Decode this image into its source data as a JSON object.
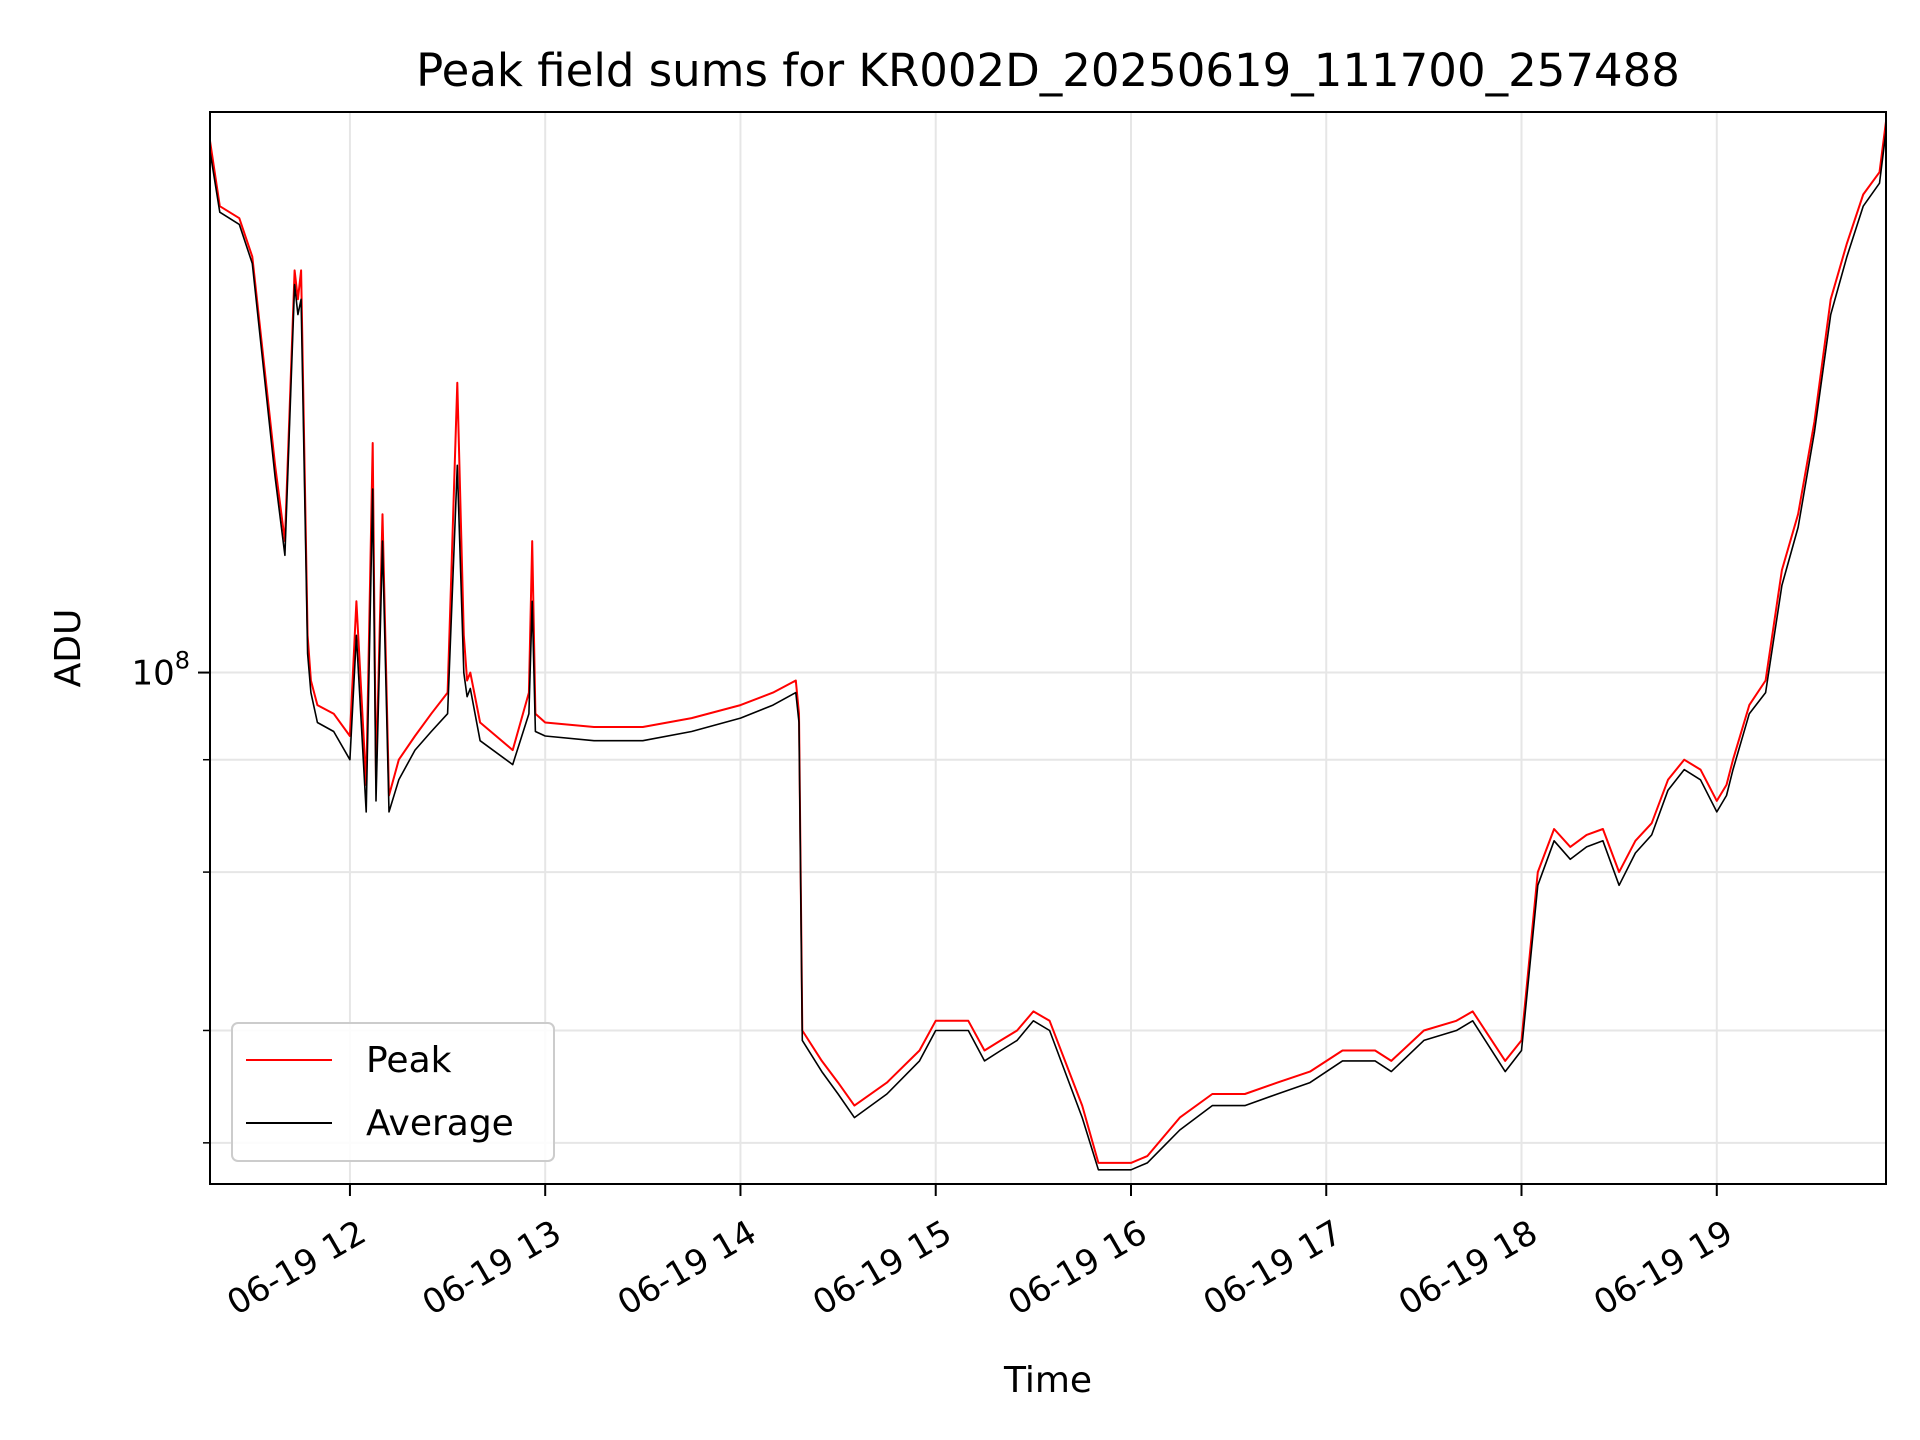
{
  "chart_data": {
    "type": "line",
    "title": "Peak field sums for KR002D_20250619_111700_257488",
    "xlabel": "Time",
    "ylabel": "ADU",
    "x_axis": {
      "type": "datetime",
      "range": [
        "2025-06-19 11:17",
        "2025-06-19 19:52"
      ],
      "tick_labels": [
        "06-19 12",
        "06-19 13",
        "06-19 14",
        "06-19 15",
        "06-19 16",
        "06-19 17",
        "06-19 18",
        "06-19 19"
      ],
      "tick_values": [
        "2025-06-19 12:00",
        "2025-06-19 13:00",
        "2025-06-19 14:00",
        "2025-06-19 15:00",
        "2025-06-19 16:00",
        "2025-06-19 17:00",
        "2025-06-19 18:00",
        "2025-06-19 19:00"
      ]
    },
    "y_axis": {
      "scale": "log",
      "range": [
        27000000,
        420000000
      ],
      "major_tick_values": [
        100000000
      ],
      "major_tick_labels": [
        {
          "base": "10",
          "exp": "8"
        }
      ],
      "minor_tick_values": [
        30000000,
        40000000,
        60000000,
        80000000
      ]
    },
    "grid": true,
    "legend_position": "lower-left",
    "colors": {
      "Peak": "#ff0000",
      "Average": "#000000"
    },
    "series": [
      {
        "name": "Peak",
        "x": [
          "2025-06-19 11:17",
          "2025-06-19 11:20",
          "2025-06-19 11:26",
          "2025-06-19 11:30",
          "2025-06-19 11:37",
          "2025-06-19 11:40",
          "2025-06-19 11:43",
          "2025-06-19 11:44",
          "2025-06-19 11:45",
          "2025-06-19 11:47",
          "2025-06-19 11:48",
          "2025-06-19 11:50",
          "2025-06-19 11:55",
          "2025-06-19 12:00",
          "2025-06-19 12:02",
          "2025-06-19 12:05",
          "2025-06-19 12:07",
          "2025-06-19 12:08",
          "2025-06-19 12:10",
          "2025-06-19 12:12",
          "2025-06-19 12:15",
          "2025-06-19 12:20",
          "2025-06-19 12:25",
          "2025-06-19 12:30",
          "2025-06-19 12:33",
          "2025-06-19 12:35",
          "2025-06-19 12:36",
          "2025-06-19 12:37",
          "2025-06-19 12:40",
          "2025-06-19 12:50",
          "2025-06-19 12:55",
          "2025-06-19 12:56",
          "2025-06-19 12:57",
          "2025-06-19 13:00",
          "2025-06-19 13:15",
          "2025-06-19 13:30",
          "2025-06-19 13:45",
          "2025-06-19 14:00",
          "2025-06-19 14:10",
          "2025-06-19 14:17",
          "2025-06-19 14:18",
          "2025-06-19 14:19",
          "2025-06-19 14:25",
          "2025-06-19 14:30",
          "2025-06-19 14:35",
          "2025-06-19 14:45",
          "2025-06-19 14:55",
          "2025-06-19 15:00",
          "2025-06-19 15:10",
          "2025-06-19 15:15",
          "2025-06-19 15:20",
          "2025-06-19 15:25",
          "2025-06-19 15:30",
          "2025-06-19 15:35",
          "2025-06-19 15:45",
          "2025-06-19 15:50",
          "2025-06-19 16:00",
          "2025-06-19 16:05",
          "2025-06-19 16:15",
          "2025-06-19 16:25",
          "2025-06-19 16:35",
          "2025-06-19 16:45",
          "2025-06-19 16:55",
          "2025-06-19 17:05",
          "2025-06-19 17:15",
          "2025-06-19 17:20",
          "2025-06-19 17:30",
          "2025-06-19 17:40",
          "2025-06-19 17:45",
          "2025-06-19 17:55",
          "2025-06-19 18:00",
          "2025-06-19 18:05",
          "2025-06-19 18:10",
          "2025-06-19 18:15",
          "2025-06-19 18:20",
          "2025-06-19 18:25",
          "2025-06-19 18:30",
          "2025-06-19 18:35",
          "2025-06-19 18:40",
          "2025-06-19 18:45",
          "2025-06-19 18:50",
          "2025-06-19 18:55",
          "2025-06-19 19:00",
          "2025-06-19 19:03",
          "2025-06-19 19:05",
          "2025-06-19 19:10",
          "2025-06-19 19:15",
          "2025-06-19 19:20",
          "2025-06-19 19:25",
          "2025-06-19 19:30",
          "2025-06-19 19:35",
          "2025-06-19 19:40",
          "2025-06-19 19:45",
          "2025-06-19 19:50",
          "2025-06-19 19:52"
        ],
        "y": [
          390000000,
          330000000,
          320000000,
          290000000,
          170000000,
          140000000,
          280000000,
          260000000,
          280000000,
          110000000,
          98000000,
          92000000,
          90000000,
          85000000,
          120000000,
          75000000,
          180000000,
          76000000,
          150000000,
          73000000,
          80000000,
          85000000,
          90000000,
          95000000,
          210000000,
          110000000,
          98000000,
          100000000,
          88000000,
          82000000,
          95000000,
          140000000,
          90000000,
          88000000,
          87000000,
          87000000,
          89000000,
          92000000,
          95000000,
          98000000,
          90000000,
          40000000,
          37000000,
          35000000,
          33000000,
          35000000,
          38000000,
          41000000,
          41000000,
          38000000,
          39000000,
          40000000,
          42000000,
          41000000,
          33000000,
          28500000,
          28500000,
          29000000,
          32000000,
          34000000,
          34000000,
          35000000,
          36000000,
          38000000,
          38000000,
          37000000,
          40000000,
          41000000,
          42000000,
          37000000,
          39000000,
          60000000,
          67000000,
          64000000,
          66000000,
          67000000,
          60000000,
          65000000,
          68000000,
          76000000,
          80000000,
          78000000,
          72000000,
          75000000,
          80000000,
          92000000,
          98000000,
          130000000,
          150000000,
          190000000,
          260000000,
          300000000,
          340000000,
          360000000,
          410000000
        ]
      },
      {
        "name": "Average",
        "x": [
          "2025-06-19 11:17",
          "2025-06-19 11:20",
          "2025-06-19 11:26",
          "2025-06-19 11:30",
          "2025-06-19 11:37",
          "2025-06-19 11:40",
          "2025-06-19 11:43",
          "2025-06-19 11:44",
          "2025-06-19 11:45",
          "2025-06-19 11:47",
          "2025-06-19 11:48",
          "2025-06-19 11:50",
          "2025-06-19 11:55",
          "2025-06-19 12:00",
          "2025-06-19 12:02",
          "2025-06-19 12:05",
          "2025-06-19 12:07",
          "2025-06-19 12:08",
          "2025-06-19 12:10",
          "2025-06-19 12:12",
          "2025-06-19 12:15",
          "2025-06-19 12:20",
          "2025-06-19 12:25",
          "2025-06-19 12:30",
          "2025-06-19 12:33",
          "2025-06-19 12:35",
          "2025-06-19 12:36",
          "2025-06-19 12:37",
          "2025-06-19 12:40",
          "2025-06-19 12:50",
          "2025-06-19 12:55",
          "2025-06-19 12:56",
          "2025-06-19 12:57",
          "2025-06-19 13:00",
          "2025-06-19 13:15",
          "2025-06-19 13:30",
          "2025-06-19 13:45",
          "2025-06-19 14:00",
          "2025-06-19 14:10",
          "2025-06-19 14:17",
          "2025-06-19 14:18",
          "2025-06-19 14:19",
          "2025-06-19 14:25",
          "2025-06-19 14:30",
          "2025-06-19 14:35",
          "2025-06-19 14:45",
          "2025-06-19 14:55",
          "2025-06-19 15:00",
          "2025-06-19 15:10",
          "2025-06-19 15:15",
          "2025-06-19 15:20",
          "2025-06-19 15:25",
          "2025-06-19 15:30",
          "2025-06-19 15:35",
          "2025-06-19 15:45",
          "2025-06-19 15:50",
          "2025-06-19 16:00",
          "2025-06-19 16:05",
          "2025-06-19 16:15",
          "2025-06-19 16:25",
          "2025-06-19 16:35",
          "2025-06-19 16:45",
          "2025-06-19 16:55",
          "2025-06-19 17:05",
          "2025-06-19 17:15",
          "2025-06-19 17:20",
          "2025-06-19 17:30",
          "2025-06-19 17:40",
          "2025-06-19 17:45",
          "2025-06-19 17:55",
          "2025-06-19 18:00",
          "2025-06-19 18:05",
          "2025-06-19 18:10",
          "2025-06-19 18:15",
          "2025-06-19 18:20",
          "2025-06-19 18:25",
          "2025-06-19 18:30",
          "2025-06-19 18:35",
          "2025-06-19 18:40",
          "2025-06-19 18:45",
          "2025-06-19 18:50",
          "2025-06-19 18:55",
          "2025-06-19 19:00",
          "2025-06-19 19:03",
          "2025-06-19 19:05",
          "2025-06-19 19:10",
          "2025-06-19 19:15",
          "2025-06-19 19:20",
          "2025-06-19 19:25",
          "2025-06-19 19:30",
          "2025-06-19 19:35",
          "2025-06-19 19:40",
          "2025-06-19 19:45",
          "2025-06-19 19:50",
          "2025-06-19 19:52"
        ],
        "y": [
          380000000,
          325000000,
          315000000,
          285000000,
          165000000,
          135000000,
          270000000,
          250000000,
          260000000,
          105000000,
          95000000,
          88000000,
          86000000,
          80000000,
          110000000,
          70000000,
          160000000,
          72000000,
          140000000,
          70000000,
          76000000,
          82000000,
          86000000,
          90000000,
          170000000,
          100000000,
          94000000,
          96000000,
          84000000,
          79000000,
          90000000,
          120000000,
          86000000,
          85000000,
          84000000,
          84000000,
          86000000,
          89000000,
          92000000,
          95000000,
          88000000,
          39000000,
          36000000,
          34000000,
          32000000,
          34000000,
          37000000,
          40000000,
          40000000,
          37000000,
          38000000,
          39000000,
          41000000,
          40000000,
          32000000,
          28000000,
          28000000,
          28500000,
          31000000,
          33000000,
          33000000,
          34000000,
          35000000,
          37000000,
          37000000,
          36000000,
          39000000,
          40000000,
          41000000,
          36000000,
          38000000,
          58000000,
          65000000,
          62000000,
          64000000,
          65000000,
          58000000,
          63000000,
          66000000,
          74000000,
          78000000,
          76000000,
          70000000,
          73000000,
          78000000,
          90000000,
          95000000,
          125000000,
          145000000,
          185000000,
          250000000,
          290000000,
          330000000,
          350000000,
          400000000
        ]
      }
    ]
  }
}
